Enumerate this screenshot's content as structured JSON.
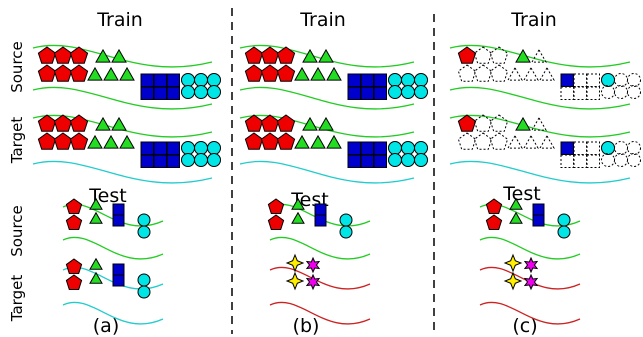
{
  "panels": [
    {
      "train_title": "Train",
      "test_title": "Test",
      "caption": "(a)",
      "test_target": "same"
    },
    {
      "train_title": "Train",
      "test_title": "Test",
      "caption": "(b)",
      "test_target": "new"
    },
    {
      "train_title": "Train",
      "test_title": "Test",
      "caption": "(c)",
      "test_target": "new",
      "sparse_train": true
    }
  ],
  "row_labels": {
    "train_source": "Source",
    "train_target": "Target",
    "test_source": "Source",
    "test_target": "Target"
  },
  "colors": {
    "source_band": "#22cc22",
    "target_band": "#22cccc",
    "new_band": "#cc2222",
    "pentagon": "#ee0000",
    "triangle": "#22dd22",
    "square": "#0000cc",
    "circle": "#00e5e5",
    "star_yellow": "#ffee00",
    "star_magenta": "#ee00ee",
    "divider": "#000000"
  }
}
